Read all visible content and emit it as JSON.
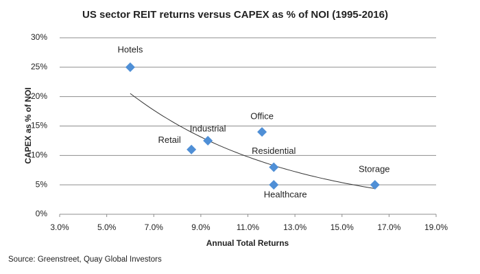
{
  "chart_data": {
    "type": "scatter",
    "title": "US sector REIT returns versus CAPEX as % of NOI (1995-2016)",
    "x_label": "Annual Total Returns",
    "y_label": "CAPEX as % of NOI",
    "source": "Source: Greenstreet, Quay Global Investors",
    "series": [
      {
        "color": "#4f8fd6",
        "labels": [
          "Hotels",
          "Retail",
          "Industrial",
          "Office",
          "Residential",
          "Healthcare",
          "Storage"
        ],
        "x": [
          6.0,
          8.6,
          9.3,
          11.6,
          12.1,
          12.1,
          16.4
        ],
        "values": [
          25,
          11,
          12.5,
          14,
          8,
          5,
          5
        ]
      }
    ],
    "trendline": "exponential",
    "xlim": [
      3,
      19
    ],
    "xticks": [
      {
        "value": 3,
        "label": "3.0%"
      },
      {
        "value": 5,
        "label": "5.0%"
      },
      {
        "value": 7,
        "label": "7.0%"
      },
      {
        "value": 9,
        "label": "9.0%"
      },
      {
        "value": 11,
        "label": "11.0%"
      },
      {
        "value": 13,
        "label": "13.0%"
      },
      {
        "value": 15,
        "label": "15.0%"
      },
      {
        "value": 17,
        "label": "17.0%"
      },
      {
        "value": 19,
        "label": "19.0%"
      }
    ],
    "ylim": [
      0,
      30
    ],
    "yticks": [
      {
        "value": 0,
        "label": "0%"
      },
      {
        "value": 5,
        "label": "5%"
      },
      {
        "value": 10,
        "label": "10%"
      },
      {
        "value": 15,
        "label": "15%"
      },
      {
        "value": 20,
        "label": "20%"
      },
      {
        "value": 25,
        "label": "25%"
      },
      {
        "value": 30,
        "label": "30%"
      }
    ],
    "grid": true
  }
}
